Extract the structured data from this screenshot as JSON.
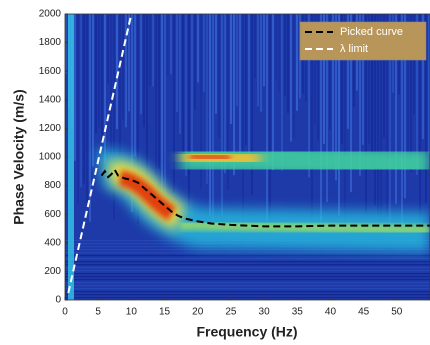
{
  "chart_data": {
    "type": "line",
    "xlabel": "Frequency (Hz)",
    "ylabel": "Phase Velocity (m/s)",
    "xlim": [
      0,
      55
    ],
    "ylim": [
      0,
      2000
    ],
    "xticks": [
      0,
      5,
      10,
      15,
      20,
      25,
      30,
      35,
      40,
      45,
      50
    ],
    "yticks": [
      0,
      200,
      400,
      600,
      800,
      1000,
      1200,
      1400,
      1600,
      1800,
      2000
    ],
    "legend": "upper right",
    "series": [
      {
        "name": "Picked curve",
        "color": "#000000",
        "dash": true,
        "x": [
          5.5,
          6,
          6.5,
          7,
          7.5,
          8,
          9,
          10,
          11,
          12,
          13,
          14,
          15,
          16,
          17,
          18,
          20,
          22,
          25,
          30,
          35,
          40,
          45,
          50,
          55
        ],
        "values": [
          870,
          900,
          860,
          880,
          910,
          870,
          850,
          840,
          820,
          780,
          740,
          700,
          660,
          620,
          590,
          570,
          550,
          535,
          525,
          515,
          515,
          520,
          520,
          520,
          520
        ]
      },
      {
        "name": "λ limit",
        "color": "#ffffff",
        "dash": true,
        "x": [
          0.5,
          10
        ],
        "values": [
          50,
          2000
        ]
      }
    ]
  }
}
